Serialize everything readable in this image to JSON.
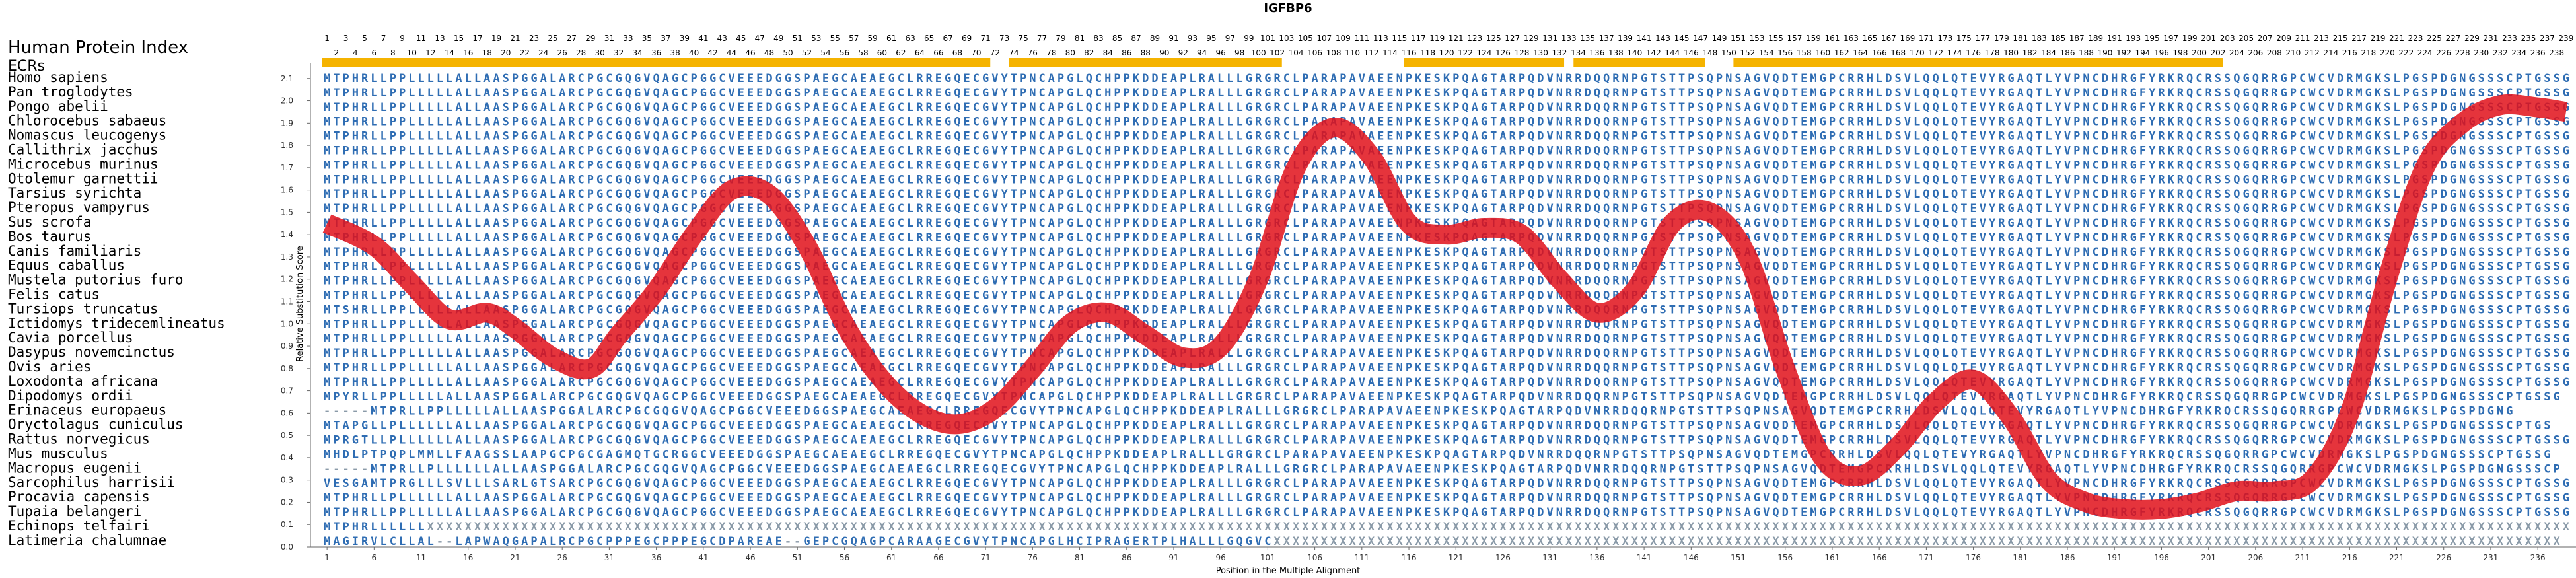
{
  "title": "IGFBP6",
  "header_label": "Human Protein Index",
  "ecr_label": "ECRs",
  "colors": {
    "aa_blue": "#2f6db3",
    "aa_gray": "#8a9aa8",
    "curve": "#e0101a",
    "ecr_bar": "#f5b300"
  },
  "chart_data": {
    "type": "line",
    "title": "IGFBP6",
    "xlabel": "Position in the Multiple Alignment",
    "ylabel": "Relative Substitution Score",
    "xlim": [
      1,
      239
    ],
    "ylim": [
      0.0,
      2.2
    ],
    "yticks": [
      "0.0",
      "0.1",
      "0.2",
      "0.3",
      "0.4",
      "0.5",
      "0.6",
      "0.7",
      "0.8",
      "0.9",
      "1.0",
      "1.1",
      "1.2",
      "1.3",
      "1.4",
      "1.5",
      "1.6",
      "1.7",
      "1.8",
      "1.9",
      "2.0",
      "2.1"
    ],
    "xticks": [
      "1",
      "6",
      "11",
      "16",
      "21",
      "26",
      "31",
      "36",
      "41",
      "46",
      "51",
      "56",
      "61",
      "66",
      "71",
      "76",
      "81",
      "86",
      "91",
      "96",
      "101",
      "106",
      "111",
      "116",
      "121",
      "126",
      "131",
      "136",
      "141",
      "146",
      "151",
      "156",
      "161",
      "166",
      "171",
      "176",
      "181",
      "186",
      "191",
      "196",
      "201",
      "206",
      "211",
      "216",
      "221",
      "226",
      "231",
      "236"
    ],
    "x": [
      1,
      6,
      10,
      14,
      18,
      21,
      25,
      29,
      32,
      36,
      40,
      44,
      48,
      52,
      56,
      60,
      64,
      68,
      72,
      76,
      80,
      84,
      88,
      92,
      96,
      100,
      104,
      108,
      112,
      116,
      120,
      124,
      128,
      132,
      136,
      140,
      144,
      148,
      152,
      156,
      160,
      164,
      168,
      172,
      176,
      180,
      184,
      188,
      192,
      196,
      200,
      204,
      208,
      212,
      216,
      220,
      224,
      228,
      232,
      236,
      239
    ],
    "y": [
      1.45,
      1.35,
      1.18,
      1.02,
      1.05,
      0.98,
      0.85,
      0.8,
      0.95,
      1.15,
      1.4,
      1.6,
      1.58,
      1.35,
      1.0,
      0.75,
      0.6,
      0.55,
      0.62,
      0.8,
      1.0,
      1.05,
      0.95,
      0.85,
      0.9,
      1.2,
      1.7,
      1.88,
      1.75,
      1.45,
      1.4,
      1.43,
      1.4,
      1.2,
      1.05,
      1.15,
      1.45,
      1.5,
      1.3,
      0.8,
      0.4,
      0.32,
      0.45,
      0.65,
      0.75,
      0.58,
      0.3,
      0.2,
      0.17,
      0.17,
      0.2,
      0.25,
      0.25,
      0.3,
      0.6,
      1.2,
      1.7,
      1.9,
      1.98,
      1.97,
      1.95
    ],
    "ecrs": [
      [
        1,
        71
      ],
      [
        74,
        102
      ],
      [
        116,
        132
      ],
      [
        134,
        147
      ],
      [
        151,
        202
      ]
    ]
  },
  "species": [
    "Homo sapiens",
    "Pan troglodytes",
    "Pongo abelii",
    "Chlorocebus sabaeus",
    "Nomascus leucogenys",
    "Callithrix jacchus",
    "Microcebus murinus",
    "Otolemur garnettii",
    "Tarsius syrichta",
    "Pteropus vampyrus",
    "Sus scrofa",
    "Bos taurus",
    "Canis familiaris",
    "Equus caballus",
    "Mustela putorius furo",
    "Felis catus",
    "Tursiops truncatus",
    "Ictidomys tridecemlineatus",
    "Cavia porcellus",
    "Dasypus novemcinctus",
    "Ovis aries",
    "Loxodonta africana",
    "Dipodomys ordii",
    "Erinaceus europaeus",
    "Oryctolagus cuniculus",
    "Rattus norvegicus",
    "Mus musculus",
    "Macropus eugenii",
    "Sarcophilus harrisii",
    "Procavia capensis",
    "Tupaia belangeri",
    "Echinops telfairi",
    "Latimeria chalumnae"
  ],
  "sequences": [
    "MTPHRLLPPLLLLLALLAASPGGALARCPGCGQGVQAGCPGGCVEEEDGGSPAEGCAEAEGCLRREGQECGVYTPNCAPGLQCHPPKDDEAPLRALLLGRGRCLPARAPAVAEENPKESKPQAGTARPQDVNRRDQQRNPGTSTTPSQPNSAGVQDTEMGPCRRHLDSVLQQLQTEVYRGAQTLYVPNCDHRGFYRKRQCRSSQGQRRGPCWCVDRMGKSLPGSPDGNGSSSCPTGSSG",
    "MTPHRLLPPLLLLLALLAASPGGALARCPGCGQGVQAGCPGGCVEEEDGGSPAEGCAEAEGCLRREGQECGVYTPNCAPGLQCHPPKDDEAPLRALLLGRGRCLPARAPAVAEENPKESKPQAGTARPQDVNRRDQQRNPGTSTTPSQPNSAGVQDTEMGPCRRHLDSVLQQLQTEVYRGAQTLYVPNCDHRGFYRKRQCRSSQGQRRGPCWCVDRMGKSLPGSPDGNGSSSCPTGSSG",
    "MTPHRLLPPLLLLLALLAASPGGALARCPGCGQGVQAGCPGGCVEEEDGGSPAEGCAEAEGCLRREGQECGVYTPNCAPGLQCHPPKDDEAPLRALLLGRGRCLPARAPAVAEENPKESKPQAGTARPQDVNRRDQQRNPGTSTTPSQPNSAGVQDTEMGPCRRHLDSVLQQLQTEVYRGAQTLYVPNCDHRGFYRKRQCRSSQGQRRGPCWCVDRMGKSLPGSPDGNGSSSCPTGSSG",
    "MTPHRLLPPLLLLLALLAASPGGALARCPGCGQGVQAGCPGGCVEEEDGGSPAEGCAEAEGCLRREGQECGVYTPNCAPGLQCHPPKDDEAPLRALLLGRGRCLPARAPAVAEENPKESKPQAGTARPQDVNRRDQQRNPGTSTTPSQPNSAGVQDTEMGPCRRHLDSVLQQLQTEVYRGAQTLYVPNCDHRGFYRKRQCRSSQGQRRGPCWCVDRMGKSLPGSPDGNGSSSCPTGSSG",
    "MTPHRLLPPLLLLLALLAASPGGALARCPGCGQGVQAGCPGGCVEEEDGGSPAEGCAEAEGCLRREGQECGVYTPNCAPGLQCHPPKDDEAPLRALLLGRGRCLPARAPAVAEENPKESKPQAGTARPQDVNRRDQQRNPGTSTTPSQPNSAGVQDTEMGPCRRHLDSVLQQLQTEVYRGAQTLYVPNCDHRGFYRKRQCRSSQGQRRGPCWCVDRMGKSLPGSPDGNGSSSCPTGSSG",
    "MTPHRLLPPLLLLLALLAASPGGALARCPGCGQGVQAGCPGGCVEEEDGGSPAEGCAEAEGCLRREGQECGVYTPNCAPGLQCHPPKDDEAPLRALLLGRGRCLPARAPAVAEENPKESKPQAGTARPQDVNRRDQQRNPGTSTTPSQPNSAGVQDTEMGPCRRHLDSVLQQLQTEVYRGAQTLYVPNCDHRGFYRKRQCRSSQGQRRGPCWCVDRMGKSLPGSPDGNGSSSCPTGSSG",
    "MTPHRLLPPLLLLLALLAASPGGALARCPGCGQGVQAGCPGGCVEEEDGGSPAEGCAEAEGCLRREGQECGVYTPNCAPGLQCHPPKDDEAPLRALLLGRGRCLPARAPAVAEENPKESKPQAGTARPQDVNRRDQQRNPGTSTTPSQPNSAGVQDTEMGPCRRHLDSVLQQLQTEVYRGAQTLYVPNCDHRGFYRKRQCRSSQGQRRGPCWCVDRMGKSLPGSPDGNGSSSCPTGSSG",
    "MTPHRLLPPLLLLLALLAASPGGALARCPGCGQGVQAGCPGGCVEEEDGGSPAEGCAEAEGCLRREGQECGVYTPNCAPGLQCHPPKDDEAPLRALLLGRGRCLPARAPAVAEENPKESKPQAGTARPQDVNRRDQQRNPGTSTTPSQPNSAGVQDTEMGPCRRHLDSVLQQLQTEVYRGAQTLYVPNCDHRGFYRKRQCRSSQGQRRGPCWCVDRMGKSLPGSPDGNGSSSCPTGSSG",
    "MTPHRLLPPLLLLLALLAASPGGALARCPGCGQGVQAGCPGGCVEEEDGGSPAEGCAEAEGCLRREGQECGVYTPNCAPGLQCHPPKDDEAPLRALLLGRGRCLPARAPAVAEENPKESKPQAGTARPQDVNRRDQQRNPGTSTTPSQPNSAGVQDTEMGPCRRHLDSVLQQLQTEVYRGAQTLYVPNCDHRGFYRKRQCRSSQGQRRGPCWCVDRMGKSLPGSPDGNGSSSCPTGSSG",
    "MTPHRLLPPLLLLLALLAASPGGALARCPGCGQGVQAGCPGGCVEEEDGGSPAEGCAEAEGCLRREGQECGVYTPNCAPGLQCHPPKDDEAPLRALLLGRGRCLPARAPAVAEENPKESKPQAGTARPQDVNRRDQQRNPGTSTTPSQPNSAGVQDTEMGPCRRHLDSVLQQLQTEVYRGAQTLYVPNCDHRGFYRKRQCRSSQGQRRGPCWCVDRMGKSLPGSPDGNGSSSCPTGSSG",
    "MTPHRLLPPLLLLLALLAASPGGALARCPGCGQGVQAGCPGGCVEEEDGGSPAEGCAEAEGCLRREGQECGVYTPNCAPGLQCHPPKDDEAPLRALLLGRGRCLPARAPAVAEENPKESKPQAGTARPQDVNRRDQQRNPGTSTTPSQPNSAGVQDTEMGPCRRHLDSVLQQLQTEVYRGAQTLYVPNCDHRGFYRKRQCRSSQGQRRGPCWCVDRMGKSLPGSPDGNGSSSCPTGSSG",
    "MTPHRLLPPLLLLLALLAASPGGALARCPGCGQGVQAGCPGGCVEEEDGGSPAEGCAEAEGCLRREGQECGVYTPNCAPGLQCHPPKDDEAPLRALLLGRGRCLPARAPAVAEENPKESKPQAGTARPQDVNRRDQQRNPGTSTTPSQPNSAGVQDTEMGPCRRHLDSVLQQLQTEVYRGAQTLYVPNCDHRGFYRKRQCRSSQGQRRGPCWCVDRMGKSLPGSPDGNGSSSCPTGSSG",
    "MTPHRLLPPLLLLLALLAASPGGALARCPGCGQGVQAGCPGGCVEEEDGGSPAEGCAEAEGCLRREGQECGVYTPNCAPGLQCHPPKDDEAPLRALLLGRGRCLPARAPAVAEENPKESKPQAGTARPQDVNRRDQQRNPGTSTTPSQPNSAGVQDTEMGPCRRHLDSVLQQLQTEVYRGAQTLYVPNCDHRGFYRKRQCRSSQGQRRGPCWCVDRMGKSLPGSPDGNGSSSCPTGSSG",
    "MTPHRLLPPLLLLLALLAASPGGALARCPGCGQGVQAGCPGGCVEEEDGGSPAEGCAEAEGCLRREGQECGVYTPNCAPGLQCHPPKDDEAPLRALLLGRGRCLPARAPAVAEENPKESKPQAGTARPQDVNRRDQQRNPGTSTTPSQPNSAGVQDTEMGPCRRHLDSVLQQLQTEVYRGAQTLYVPNCDHRGFYRKRQCRSSQGQRRGPCWCVDRMGKSLPGSPDGNGSSSCPTGSSG",
    "MTPHRLLPPLLLLLALLAASPGGALARCPGCGQGVQAGCPGGCVEEEDGGSPAEGCAEAEGCLRREGQECGVYTPNCAPGLQCHPPKDDEAPLRALLLGRGRCLPARAPAVAEENPKESKPQAGTARPQDVNRRDQQRNPGTSTTPSQPNSAGVQDTEMGPCRRHLDSVLQQLQTEVYRGAQTLYVPNCDHRGFYRKRQCRSSQGQRRGPCWCVDRMGKSLPGSPDGNGSSSCPTGSSG",
    "MTPHRLLPPLLLLLALLAASPGGALARCPGCGQGVQAGCPGGCVEEEDGGSPAEGCAEAEGCLRREGQECGVYTPNCAPGLQCHPPKDDEAPLRALLLGRGRCLPARAPAVAEENPKESKPQAGTARPQDVNRRDQQRNPGTSTTPSQPNSAGVQDTEMGPCRRHLDSVLQQLQTEVYRGAQTLYVPNCDHRGFYRKRQCRSSQGQRRGPCWCVDRMGKSLPGSPDGNGSSSCPTGSSG",
    "MTSHRLLPPLLLLLALLAASPGGALARCPGCGQGVQAGCPGGCVEEEDGGSPAEGCAEAEGCLRREGQECGVYTPNCAPGLQCHPPKDDEAPLRALLLGRGRCLPARAPAVAEENPKESKPQAGTARPQDVNRRDQQRNPGTSTTPSQPNSAGVQDTEMGPCRRHLDSVLQQLQTEVYRGAQTLYVPNCDHRGFYRKRQCRSSQGQRRGPCWCVDRMGKSLPGSPDGNGSSSCPTGSSG",
    "MTPHRLLPPLLLLLALLAASPGGALARCPGCGQGVQAGCPGGCVEEEDGGSPAEGCAEAEGCLRREGQECGVYTPNCAPGLQCHPPKDDEAPLRALLLGRGRCLPARAPAVAEENPKESKPQAGTARPQDVNRRDQQRNPGTSTTPSQPNSAGVQDTEMGPCRRHLDSVLQQLQTEVYRGAQTLYVPNCDHRGFYRKRQCRSSQGQRRGPCWCVDRMGKSLPGSPDGNGSSSCPTGSSG",
    "MTPHRLLPPLLLLLALLAASPGGALARCPGCGQGVQAGCPGGCVEEEDGGSPAEGCAEAEGCLRREGQECGVYTPNCAPGLQCHPPKDDEAPLRALLLGRGRCLPARAPAVAEENPKESKPQAGTARPQDVNRRDQQRNPGTSTTPSQPNSAGVQDTEMGPCRRHLDSVLQQLQTEVYRGAQTLYVPNCDHRGFYRKRQCRSSQGQRRGPCWCVDRMGKSLPGSPDGNGSSSCPTGSSG",
    "MTPHRLLPPLLLLLALLAASPGGALARCPGCGQGVQAGCPGGCVEEEDGGSPAEGCAEAEGCLRREGQECGVYTPNCAPGLQCHPPKDDEAPLRALLLGRGRCLPARAPAVAEENPKESKPQAGTARPQDVNRRDQQRNPGTSTTPSQPNSAGVQDTEMGPCRRHLDSVLQQLQTEVYRGAQTLYVPNCDHRGFYRKRQCRSSQGQRRGPCWCVDRMGKSLPGSPDGNGSSSCPTGSSG",
    "MTPHRLLPPLLLLLALLAASPGGALARCPGCGQGVQAGCPGGCVEEEDGGSPAEGCAEAEGCLRREGQECGVYTPNCAPGLQCHPPKDDEAPLRALLLGRGRCLPARAPAVAEENPKESKPQAGTARPQDVNRRDQQRNPGTSTTPSQPNSAGVQDTEMGPCRRHLDSVLQQLQTEVYRGAQTLYVPNCDHRGFYRKRQCRSSQGQRRGPCWCVDRMGKSLPGSPDGNGSSSCPTGSSG",
    "MTPHRLLPPLLLLLALLAASPGGALARCPGCGQGVQAGCPGGCVEEEDGGSPAEGCAEAEGCLRREGQECGVYTPNCAPGLQCHPPKDDEAPLRALLLGRGRCLPARAPAVAEENPKESKPQAGTARPQDVNRRDQQRNPGTSTTPSQPNSAGVQDTEMGPCRRHLDSVLQQLQTEVYRGAQTLYVPNCDHRGFYRKRQCRSSQGQRRGPCWCVDRMGKSLPGSPDGNGSSSCPTGSSG",
    "MPYRLLPPLLLLLALLAASPGGALARCPGCGQGVQAGCPGGCVEEEDGGSPAEGCAEAEGCLRREGQECGVYTPNCAPGLQCHPPKDDEAPLRALLLGRGRCLPARAPAVAEENPKESKPQAGTARPQDVNRRDQQRNPGTSTTPSQPNSAGVQDTEMGPCRRHLDSVLQQLQTEVYRGAQTLYVPNCDHRGFYRKRQCRSSQGQRRGPCWCVDRMGKSLPGSPDGNGSSSCPTGSSG",
    "-----MTPRLLPPLLLLLALLAASPGGALARCPGCGQGVQAGCPGGCVEEEDGGSPAEGCAEAEGCLRREGQECGVYTPNCAPGLQCHPPKDDEAPLRALLLGRGRCLPARAPAVAEENPKESKPQAGTARPQDVNRRDQQRNPGTSTTPSQPNSAGVQDTEMGPCRRHLDSVLQQLQTEVYRGAQTLYVPNCDHRGFYRKRQCRSSQGQRRGPCWCVDRMGKSLPGSPDGNG",
    "MTAPGLLPLLLLLLALLAASPGGALARCPGCGQGVQAGCPGGCVEEEDGGSPAEGCAEAEGCLRREGQECGVYTPNCAPGLQCHPPKDDEAPLRALLLGRGRCLPARAPAVAEENPKESKPQAGTARPQDVNRRDQQRNPGTSTTPSQPNSAGVQDTEMGPCRRHLDSVLQQLQTEVYRGAQTLYVPNCDHRGFYRKRQCRSSQGQRRGPCWCVDRMGKSLPGSPDGNGSSSCPTGS",
    "MPRGTLLPLLLLLLALLAASPGGALARCPGCGQGVQAGCPGGCVEEEDGGSPAEGCAEAEGCLRREGQECGVYTPNCAPGLQCHPPKDDEAPLRALLLGRGRCLPARAPAVAEENPKESKPQAGTARPQDVNRRDQQRNPGTSTTPSQPNSAGVQDTEMGPCRRHLDSVLQQLQTEVYRGAQTLYVPNCDHRGFYRKRQCRSSQGQRRGPCWCVDRMGKSLPGSPDGNGSSSCPTGSSG",
    "MHDLPTPQPLMMLLFAAGSSLAAPGCPGCGAGMQTGCRGGCVEEEDGGSPAEGCAEAEGCLRREGQECGVYTPNCAPGLQCHPPKDDEAPLRALLLGRGRCLPARAPAVAEENPKESKPQAGTARPQDVNRRDQQRNPGTSTTPSQPNSAGVQDTEMGPCRRHLDSVLQQLQTEVYRGAQTLYVPNCDHRGFYRKRQCRSSQGQRRGPCWCVDRMGKSLPGSPDGNGSSSCPTGSSG",
    "-----MTPRLLPLLLLLLALLAASPGGALARCPGCGQGVQAGCPGGCVEEEDGGSPAEGCAEAEGCLRREGQECGVYTPNCAPGLQCHPPKDDEAPLRALLLGRGRCLPARAPAVAEENPKESKPQAGTARPQDVNRRDQQRNPGTSTTPSQPNSAGVQDTEMGPCRRHLDSVLQQLQTEVYRGAQTLYVPNCDHRGFYRKRQCRSSQGQRRGPCWCVDRMGKSLPGSPDGNGSSSCP",
    "VESGAMTPRGLLLSVLLLSARLGTSARCPGCGQGVQAGCPGGCVEEEDGGSPAEGCAEAEGCLRREGQECGVYTPNCAPGLQCHPPKDDEAPLRALLLGRGRCLPARAPAVAEENPKESKPQAGTARPQDVNRRDQQRNPGTSTTPSQPNSAGVQDTEMGPCRRHLDSVLQQLQTEVYRGAQTLYVPNCDHRGFYRKRQCRSSQGQRRGPCWCVDRMGKSLPGSPDGNGSSSCPTGSSG",
    "MTPHRLLPLLLLLLALLAASPGGALARCPGCGQGVQAGCPGGCVEEEDGGSPAEGCAEAEGCLRREGQECGVYTPNCAPGLQCHPPKDDEAPLRALLLGRGRCLPARAPAVAEENPKESKPQAGTARPQDVNRRDQQRNPGTSTTPSQPNSAGVQDTEMGPCRRHLDSVLQQLQTEVYRGAQTLYVPNCDHRGFYRKRQCRSSQGQRRGPCWCVDRMGKSLPGSPDGNGSSSCPTGSSG",
    "MTPHRLLPPLLLLLALLAASPGGALARCPGCGQGVQAGCPGGCVEEEDGGSPAEGCAEAEGCLRREGQECGVYTPNCAPGLQCHPPKDDEAPLRALLLGRGRCLPARAPAVAEENPKESKPQAGTARPQDVNRRDQQRNPGTSTTPSQPNSAGVQDTEMGPCRRHLDSVLQQLQTEVYRGAQTLYVPNCDHRGFYRKRQCRSSQGQRRGPCWCVDRMGKSLPGSPDGNGSSSCPTGSSG",
    "MTPHRLLLLLLXXXXXXXXXXXXXXXXXXXXXXXXXXXXXXXXXXXXXXXXXXXXXXXXXXXXXXXXXXXXXXXXXXXXXXXXXXXXXXXXXXXXXXXXXXXXXXXXXXXXXXXXXXXXXXXXXXXXXXXXXXXXXXXXXXXXXXXXXXXXXXXXXXXXXXXXXXXXXXXXXXXXXXXXXXXXXXXXXXXXXXXXXXXXXXXXXXXXXXXXXXXXXXXXXXXXXXXXXXXXXXXXXXXX",
    "MAGIRVLCLLAL--LAPWAQGAPALRCPGCPPPEGCPPPEGCDPAREAE--GEPCGQAGPCARAAGECGVYTPNCAPGLHCIPRAGERTPLHALLLGQGVCXXXXXXXXXXXXXXXXXXXXXXXXXXXXXXXXXXXXXXXXXXXXXXXXXXXXXXXXXXXXXXXXXXXXXXXXXXXXXXXXXXXXXXXXXXXXXXXXXXXXXXXXXXXXXXXXXXXXXXXXXXXXXXXXXXXXXXXXX"
  ]
}
